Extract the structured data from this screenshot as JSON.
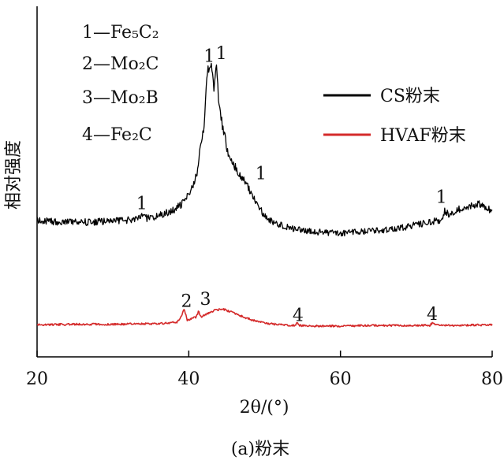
{
  "chart_data": {
    "type": "line",
    "title": "",
    "caption": "(a)粉末",
    "xlabel": "2θ/(°)",
    "ylabel": "相对强度",
    "xlim": [
      20,
      80
    ],
    "x_ticks": [
      20,
      40,
      60,
      80
    ],
    "grid": false,
    "legend_position": "right",
    "phase_key": [
      {
        "num": "1",
        "phase": "Fe₅C₂"
      },
      {
        "num": "2",
        "phase": "Mo₂C"
      },
      {
        "num": "3",
        "phase": "Mo₂B"
      },
      {
        "num": "4",
        "phase": "Fe₂C"
      }
    ],
    "series": [
      {
        "name": "CS粉末",
        "color": "#000000",
        "x": [
          20,
          22,
          24,
          26,
          28,
          30,
          32,
          33.5,
          34,
          34.5,
          36,
          38,
          39,
          40,
          41,
          42,
          42.5,
          43,
          43.3,
          43.6,
          44,
          45,
          46,
          47,
          47.8,
          48.5,
          49.5,
          50.5,
          52,
          54,
          56,
          58,
          60,
          62,
          64,
          66,
          68,
          70,
          72,
          73.3,
          73.8,
          74.3,
          75,
          76,
          77,
          78,
          79,
          80
        ],
        "y": [
          100,
          98,
          97,
          97,
          98,
          99,
          101,
          104,
          110,
          104,
          108,
          118,
          128,
          146,
          180,
          262,
          370,
          375,
          328,
          380,
          300,
          228,
          198,
          178,
          162,
          140,
          118,
          102,
          92,
          85,
          81,
          79,
          78,
          80,
          82,
          84,
          87,
          93,
          97,
          102,
          118,
          110,
          117,
          122,
          125,
          130,
          124,
          116
        ]
      },
      {
        "name": "HVAF粉末",
        "color": "#d42a2a",
        "x": [
          20,
          25,
          30,
          35,
          37,
          38.5,
          39,
          39.4,
          39.8,
          40.5,
          41,
          41.3,
          41.6,
          42.5,
          43.5,
          44.5,
          45.5,
          47,
          48.5,
          50,
          52,
          54,
          54.3,
          54.6,
          56,
          60,
          65,
          70,
          71.8,
          72.2,
          72.6,
          75,
          80
        ],
        "y": [
          12,
          13,
          13,
          14,
          15,
          17,
          27,
          40,
          20,
          24,
          26,
          36,
          26,
          32,
          38,
          40,
          35,
          27,
          20,
          15,
          12,
          11,
          16,
          11,
          10,
          10,
          11,
          11,
          11,
          17,
          12,
          11,
          12
        ]
      }
    ],
    "annotations": [
      {
        "text": "1",
        "x": 42.7,
        "y": 380
      },
      {
        "text": "1",
        "x": 44.3,
        "y": 385
      },
      {
        "text": "1",
        "x": 33.8,
        "y": 120
      },
      {
        "text": "1",
        "x": 49.5,
        "y": 173
      },
      {
        "text": "1",
        "x": 73.3,
        "y": 131
      },
      {
        "text": "2",
        "x": 39.7,
        "y": 44
      },
      {
        "text": "3",
        "x": 42.2,
        "y": 47
      },
      {
        "text": "4",
        "x": 54.4,
        "y": 19
      },
      {
        "text": "4",
        "x": 72.1,
        "y": 21
      }
    ]
  }
}
